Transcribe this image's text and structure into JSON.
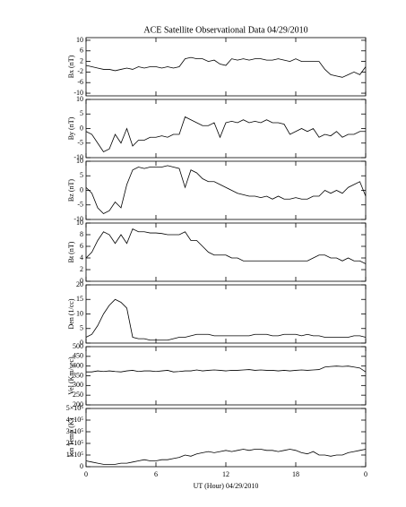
{
  "chart_data": [
    {
      "type": "line",
      "title": "ACE Satellite Observational Data  04/29/2010",
      "ylabel": "Bx (nT)",
      "color": "#000000",
      "x": [
        0,
        0.5,
        1,
        1.5,
        2,
        2.5,
        3,
        3.5,
        4,
        4.5,
        5,
        5.5,
        6,
        6.5,
        7,
        7.5,
        8,
        8.5,
        9,
        9.5,
        10,
        10.5,
        11,
        11.5,
        12,
        12.5,
        13,
        13.5,
        14,
        14.5,
        15,
        15.5,
        16,
        16.5,
        17,
        17.5,
        18,
        18.5,
        19,
        19.5,
        20,
        20.5,
        21,
        21.5,
        22,
        22.5,
        23,
        23.5,
        24
      ],
      "values": [
        0.5,
        0,
        -0.5,
        -1,
        -1,
        -1.5,
        -1,
        -0.5,
        -1,
        0,
        -0.5,
        0,
        0,
        -0.5,
        0,
        -0.5,
        0,
        3,
        3.5,
        3,
        3,
        2,
        2.5,
        1,
        0.5,
        3,
        2.5,
        3,
        2.5,
        3,
        3,
        2.5,
        2.5,
        3,
        2.5,
        2,
        3,
        2,
        2,
        2,
        2,
        -1,
        -3,
        -3.5,
        -4,
        -3,
        -2,
        -3,
        0
      ],
      "xlim": [
        0,
        24
      ],
      "xticks": [
        0,
        6,
        12,
        18,
        {
          "value": 24,
          "label": "0"
        }
      ],
      "ylim": [
        -11,
        11
      ],
      "yticks": [
        -10,
        -6,
        -2,
        2,
        6,
        10
      ]
    },
    {
      "type": "line",
      "ylabel": "By (nT)",
      "color": "#000000",
      "x": [
        0,
        0.5,
        1,
        1.5,
        2,
        2.5,
        3,
        3.5,
        4,
        4.5,
        5,
        5.5,
        6,
        6.5,
        7,
        7.5,
        8,
        8.5,
        9,
        9.5,
        10,
        10.5,
        11,
        11.5,
        12,
        12.5,
        13,
        13.5,
        14,
        14.5,
        15,
        15.5,
        16,
        16.5,
        17,
        17.5,
        18,
        18.5,
        19,
        19.5,
        20,
        20.5,
        21,
        21.5,
        22,
        22.5,
        23,
        23.5,
        24
      ],
      "values": [
        -1,
        -2,
        -5,
        -8,
        -7,
        -2,
        -5,
        0,
        -6,
        -4,
        -4,
        -3,
        -3,
        -2.5,
        -3,
        -2,
        -2,
        4,
        3,
        2,
        1,
        1,
        2,
        -3,
        2,
        2.5,
        2,
        3,
        2,
        2.5,
        2,
        3,
        2,
        2,
        1.5,
        -2,
        -1,
        0,
        -1,
        0,
        -3,
        -2,
        -2.5,
        -1,
        -3,
        -2,
        -2,
        -1,
        -1
      ],
      "xlim": [
        0,
        24
      ],
      "xticks": [
        0,
        6,
        12,
        18,
        {
          "value": 24,
          "label": "0"
        }
      ],
      "ylim": [
        -10,
        10
      ],
      "yticks": [
        -10,
        -5,
        0,
        5,
        10
      ]
    },
    {
      "type": "line",
      "ylabel": "Bz (nT)",
      "color": "#000000",
      "x": [
        0,
        0.5,
        1,
        1.5,
        2,
        2.5,
        3,
        3.5,
        4,
        4.5,
        5,
        5.5,
        6,
        6.5,
        7,
        7.5,
        8,
        8.5,
        9,
        9.5,
        10,
        10.5,
        11,
        11.5,
        12,
        12.5,
        13,
        13.5,
        14,
        14.5,
        15,
        15.5,
        16,
        16.5,
        17,
        17.5,
        18,
        18.5,
        19,
        19.5,
        20,
        20.5,
        21,
        21.5,
        22,
        22.5,
        23,
        23.5,
        24
      ],
      "values": [
        1,
        -1,
        -6,
        -8,
        -7,
        -4,
        -6,
        2,
        7,
        8,
        7.5,
        8,
        8,
        8,
        8.5,
        8,
        7.5,
        1,
        7,
        6,
        4,
        3,
        3,
        2,
        1,
        0,
        -1,
        -1.5,
        -2,
        -2,
        -2.5,
        -2,
        -3,
        -2,
        -3,
        -3,
        -2.5,
        -3,
        -3,
        -2,
        -2,
        0,
        -1,
        0,
        -1,
        1,
        2,
        3,
        -2
      ],
      "xlim": [
        0,
        24
      ],
      "xticks": [
        0,
        6,
        12,
        18,
        {
          "value": 24,
          "label": "0"
        }
      ],
      "ylim": [
        -10,
        10
      ],
      "yticks": [
        -10,
        -5,
        0,
        5,
        10
      ]
    },
    {
      "type": "line",
      "ylabel": "Bt (nT)",
      "color": "#000000",
      "x": [
        0,
        0.5,
        1,
        1.5,
        2,
        2.5,
        3,
        3.5,
        4,
        4.5,
        5,
        5.5,
        6,
        6.5,
        7,
        7.5,
        8,
        8.5,
        9,
        9.5,
        10,
        10.5,
        11,
        11.5,
        12,
        12.5,
        13,
        13.5,
        14,
        14.5,
        15,
        15.5,
        16,
        16.5,
        17,
        17.5,
        18,
        18.5,
        19,
        19.5,
        20,
        20.5,
        21,
        21.5,
        22,
        22.5,
        23,
        23.5,
        24
      ],
      "values": [
        4,
        5,
        7,
        8.5,
        8,
        6.5,
        8,
        6.5,
        9,
        8.5,
        8.5,
        8.3,
        8.3,
        8.2,
        8,
        8,
        8,
        8.5,
        7,
        7,
        6,
        5,
        4.5,
        4.5,
        4.5,
        4,
        4,
        3.5,
        3.5,
        3.5,
        3.5,
        3.5,
        3.5,
        3.5,
        3.5,
        3.5,
        3.5,
        3.5,
        3.5,
        4,
        4.5,
        4.5,
        4,
        4,
        3.5,
        4,
        3.5,
        3.5,
        3
      ],
      "xlim": [
        0,
        24
      ],
      "xticks": [
        0,
        6,
        12,
        18,
        {
          "value": 24,
          "label": "0"
        }
      ],
      "ylim": [
        0,
        10
      ],
      "yticks": [
        0,
        2,
        4,
        6,
        8,
        10
      ]
    },
    {
      "type": "line",
      "ylabel": "Den (1/cc)",
      "color": "#000000",
      "x": [
        0,
        0.5,
        1,
        1.5,
        2,
        2.5,
        3,
        3.5,
        4,
        4.5,
        5,
        5.5,
        6,
        6.5,
        7,
        7.5,
        8,
        8.5,
        9,
        9.5,
        10,
        10.5,
        11,
        11.5,
        12,
        12.5,
        13,
        13.5,
        14,
        14.5,
        15,
        15.5,
        16,
        16.5,
        17,
        17.5,
        18,
        18.5,
        19,
        19.5,
        20,
        20.5,
        21,
        21.5,
        22,
        22.5,
        23,
        23.5,
        24
      ],
      "values": [
        2,
        3,
        6,
        10,
        13,
        15,
        14,
        12,
        2,
        1.5,
        1.5,
        1,
        1,
        1,
        1,
        1.5,
        2,
        2,
        2.5,
        3,
        3,
        3,
        2.5,
        2.5,
        2.5,
        2.5,
        2.5,
        2.5,
        2.5,
        3,
        3,
        3,
        2.5,
        2.5,
        3,
        3,
        3,
        2.5,
        3,
        2.5,
        2.5,
        2,
        2,
        2,
        2,
        2,
        2.5,
        2.5,
        2
      ],
      "xlim": [
        0,
        24
      ],
      "xticks": [
        0,
        6,
        12,
        18,
        {
          "value": 24,
          "label": "0"
        }
      ],
      "ylim": [
        0,
        20
      ],
      "yticks": [
        0,
        5,
        10,
        15,
        20
      ]
    },
    {
      "type": "line",
      "ylabel": "Vel (Km/sec)",
      "color": "#000000",
      "x": [
        0,
        0.5,
        1,
        1.5,
        2,
        2.5,
        3,
        3.5,
        4,
        4.5,
        5,
        5.5,
        6,
        6.5,
        7,
        7.5,
        8,
        8.5,
        9,
        9.5,
        10,
        10.5,
        11,
        11.5,
        12,
        12.5,
        13,
        13.5,
        14,
        14.5,
        15,
        15.5,
        16,
        16.5,
        17,
        17.5,
        18,
        18.5,
        19,
        19.5,
        20,
        20.5,
        21,
        21.5,
        22,
        22.5,
        23,
        23.5,
        24
      ],
      "values": [
        370,
        370,
        375,
        372,
        375,
        372,
        370,
        375,
        378,
        372,
        375,
        375,
        372,
        375,
        378,
        370,
        372,
        375,
        375,
        380,
        375,
        378,
        380,
        378,
        375,
        378,
        378,
        380,
        382,
        378,
        380,
        378,
        378,
        375,
        378,
        375,
        378,
        380,
        378,
        380,
        382,
        395,
        398,
        400,
        398,
        400,
        395,
        390,
        370
      ],
      "xlim": [
        0,
        24
      ],
      "xticks": [
        0,
        6,
        12,
        18,
        {
          "value": 24,
          "label": "0"
        }
      ],
      "ylim": [
        200,
        500
      ],
      "yticks": [
        200,
        250,
        300,
        350,
        400,
        450,
        500
      ]
    },
    {
      "type": "line",
      "ylabel": "Ion Temp (K)",
      "xlabel": "UT (Hour)  04/29/2010",
      "color": "#000000",
      "x": [
        0,
        0.5,
        1,
        1.5,
        2,
        2.5,
        3,
        3.5,
        4,
        4.5,
        5,
        5.5,
        6,
        6.5,
        7,
        7.5,
        8,
        8.5,
        9,
        9.5,
        10,
        10.5,
        11,
        11.5,
        12,
        12.5,
        13,
        13.5,
        14,
        14.5,
        15,
        15.5,
        16,
        16.5,
        17,
        17.5,
        18,
        18.5,
        19,
        19.5,
        20,
        20.5,
        21,
        21.5,
        22,
        22.5,
        23,
        23.5,
        24
      ],
      "values": [
        50000,
        40000,
        30000,
        20000,
        20000,
        20000,
        30000,
        30000,
        40000,
        50000,
        60000,
        50000,
        50000,
        60000,
        60000,
        70000,
        80000,
        100000,
        90000,
        110000,
        120000,
        130000,
        120000,
        130000,
        140000,
        130000,
        140000,
        150000,
        140000,
        150000,
        150000,
        140000,
        140000,
        130000,
        140000,
        150000,
        140000,
        120000,
        110000,
        130000,
        100000,
        100000,
        90000,
        100000,
        100000,
        120000,
        130000,
        140000,
        150000
      ],
      "xlim": [
        0,
        24
      ],
      "xticks": [
        0,
        6,
        12,
        18,
        {
          "value": 24,
          "label": "0"
        }
      ],
      "ylim": [
        0,
        500000
      ],
      "yticks": [
        0,
        {
          "value": 100000,
          "label": "1×10⁵"
        },
        {
          "value": 200000,
          "label": "2×10⁵"
        },
        {
          "value": 300000,
          "label": "3×10⁵"
        },
        {
          "value": 400000,
          "label": "4×10⁵"
        },
        {
          "value": 500000,
          "label": "5×10⁵"
        }
      ]
    }
  ]
}
